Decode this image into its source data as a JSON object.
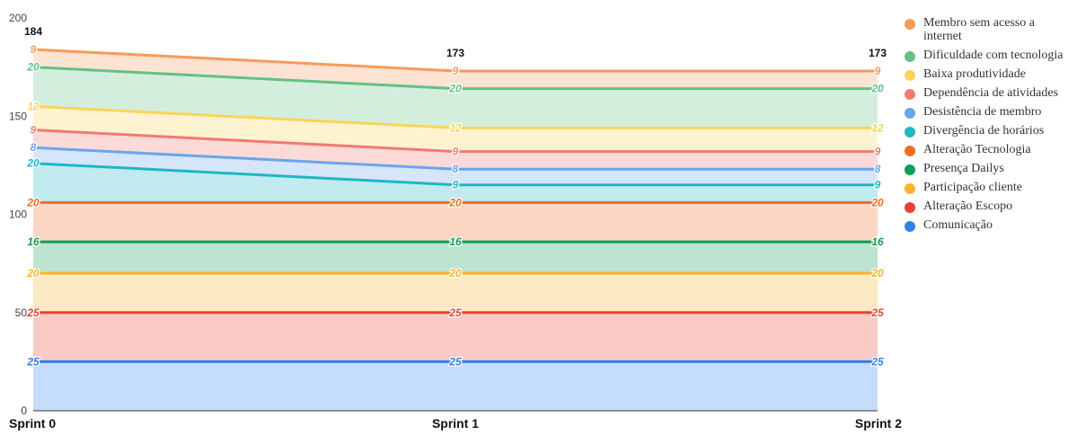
{
  "chart_data": {
    "type": "area",
    "stacked": true,
    "categories": [
      "Sprint 0",
      "Sprint 1",
      "Sprint 2"
    ],
    "ylim": [
      0,
      200
    ],
    "yticks": [
      0,
      50,
      100,
      150,
      200
    ],
    "totals": [
      184,
      173,
      173
    ],
    "legend_position": "right",
    "series": [
      {
        "name": "Comunicação",
        "values": [
          25,
          25,
          25
        ],
        "color": "#2f80ed"
      },
      {
        "name": "Alteração Escopo",
        "values": [
          25,
          25,
          25
        ],
        "color": "#eb4034"
      },
      {
        "name": "Participação cliente",
        "values": [
          20,
          20,
          20
        ],
        "color": "#f6b52b"
      },
      {
        "name": "Presença Dailys",
        "values": [
          16,
          16,
          16
        ],
        "color": "#0f9d58"
      },
      {
        "name": "Alteração Tecnologia",
        "values": [
          20,
          20,
          20
        ],
        "color": "#f26b25"
      },
      {
        "name": "Divergência de horários",
        "values": [
          20,
          9,
          9
        ],
        "color": "#1fb7c4"
      },
      {
        "name": "Desistência de membro",
        "values": [
          8,
          8,
          8
        ],
        "color": "#6aa5ec"
      },
      {
        "name": "Dependência de atividades",
        "values": [
          9,
          9,
          9
        ],
        "color": "#f07b72"
      },
      {
        "name": "Baixa produtividade",
        "values": [
          12,
          12,
          12
        ],
        "color": "#fbd35a"
      },
      {
        "name": "Dificuldade com tecnologia",
        "values": [
          20,
          20,
          20
        ],
        "color": "#63c184"
      },
      {
        "name": "Membro sem acesso a internet",
        "values": [
          9,
          9,
          9
        ],
        "color": "#f69b5c"
      }
    ]
  }
}
